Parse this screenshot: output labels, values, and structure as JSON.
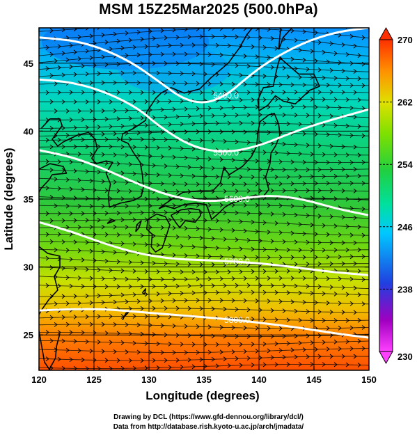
{
  "title": "MSM 15Z25Mar2025 (500.0hPa)",
  "xlabel": "Longitude (degrees)",
  "ylabel": "Latitude  (degrees)",
  "credits": {
    "line1": "Drawing by DCL (https://www.gfd-dennou.org/library/dcl/)",
    "line2": "Data from http://database.rish.kyoto-u.ac.jp/arch/jmadata/"
  },
  "map": {
    "lon_range": [
      120,
      150
    ],
    "lat_range": [
      22.4,
      47.6
    ],
    "lon_ticks": [
      120,
      125,
      130,
      135,
      140,
      145,
      150
    ],
    "lat_ticks": [
      25,
      30,
      35,
      40,
      45
    ],
    "grid": true
  },
  "colorbar": {
    "min": 230,
    "max": 270,
    "tick_values": [
      230,
      238,
      246,
      254,
      262,
      270
    ],
    "colors": [
      "#ff40ff",
      "#a000c0",
      "#2040e0",
      "#00c8ff",
      "#00e0a0",
      "#20d040",
      "#80e000",
      "#e0e000",
      "#ff9000",
      "#ff3000"
    ]
  },
  "height_contours": [
    {
      "label": "5400.0",
      "points": [
        [
          120,
          46.9
        ],
        [
          124,
          46.6
        ],
        [
          128,
          45.3
        ],
        [
          131,
          43.6
        ],
        [
          133,
          42.4
        ],
        [
          135,
          42.0
        ],
        [
          137,
          42.6
        ],
        [
          139,
          44.0
        ],
        [
          141,
          45.2
        ],
        [
          144,
          46.5
        ],
        [
          147,
          47.3
        ],
        [
          150,
          47.6
        ]
      ]
    },
    {
      "label": "5500.0",
      "points": [
        [
          120,
          43.8
        ],
        [
          123,
          43.6
        ],
        [
          126,
          42.9
        ],
        [
          129,
          41.7
        ],
        [
          131,
          40.3
        ],
        [
          134,
          38.8
        ],
        [
          137,
          38.4
        ],
        [
          140,
          38.9
        ],
        [
          143,
          39.9
        ],
        [
          146,
          40.7
        ],
        [
          150,
          41.6
        ]
      ]
    },
    {
      "label": "5600.0",
      "points": [
        [
          120,
          38.6
        ],
        [
          123,
          38.1
        ],
        [
          126,
          37.2
        ],
        [
          129,
          36.1
        ],
        [
          132,
          35.2
        ],
        [
          135,
          34.8
        ],
        [
          138,
          35.0
        ],
        [
          141,
          35.3
        ],
        [
          144,
          35.0
        ],
        [
          147,
          34.3
        ],
        [
          150,
          33.8
        ]
      ]
    },
    {
      "label": "5700.0",
      "points": [
        [
          120,
          33.3
        ],
        [
          123,
          32.6
        ],
        [
          126,
          31.7
        ],
        [
          129,
          31.0
        ],
        [
          132,
          30.6
        ],
        [
          135,
          30.5
        ],
        [
          138,
          30.4
        ],
        [
          141,
          30.2
        ],
        [
          144,
          29.9
        ],
        [
          147,
          29.6
        ],
        [
          150,
          29.4
        ]
      ]
    },
    {
      "label": "5800.0",
      "points": [
        [
          120,
          26.8
        ],
        [
          123,
          26.9
        ],
        [
          126,
          26.9
        ],
        [
          129,
          26.7
        ],
        [
          132,
          26.5
        ],
        [
          135,
          26.3
        ],
        [
          138,
          26.1
        ],
        [
          141,
          25.8
        ],
        [
          144,
          25.5
        ],
        [
          147,
          25.1
        ],
        [
          150,
          24.8
        ]
      ]
    }
  ]
}
